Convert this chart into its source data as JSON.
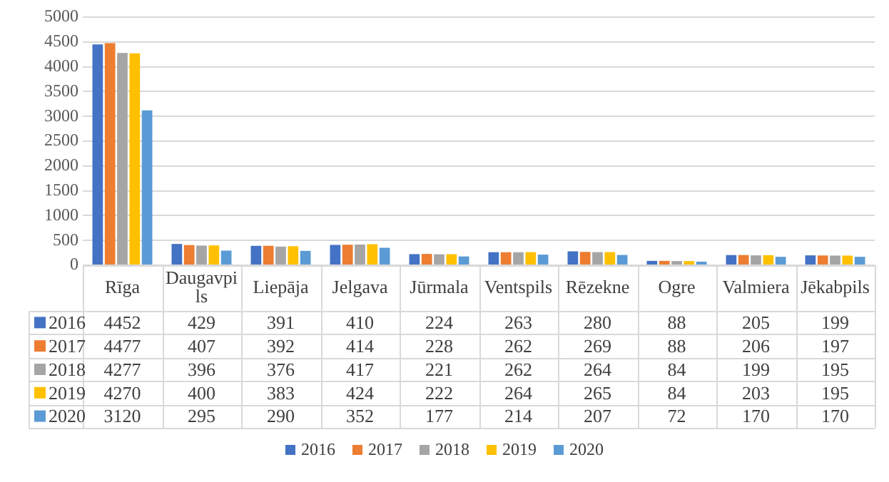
{
  "chart_data": {
    "type": "bar",
    "categories": [
      "Rīga",
      "Daugavpils",
      "Liepāja",
      "Jelgava",
      "Jūrmala",
      "Ventspils",
      "Rēzekne",
      "Ogre",
      "Valmiera",
      "Jēkabpils"
    ],
    "series": [
      {
        "name": "2016",
        "color": "#4472c4",
        "values": [
          4452,
          429,
          391,
          410,
          224,
          263,
          280,
          88,
          205,
          199
        ]
      },
      {
        "name": "2017",
        "color": "#ed7d31",
        "values": [
          4477,
          407,
          392,
          414,
          228,
          262,
          269,
          88,
          206,
          197
        ]
      },
      {
        "name": "2018",
        "color": "#a5a5a5",
        "values": [
          4277,
          396,
          376,
          417,
          221,
          262,
          264,
          84,
          199,
          195
        ]
      },
      {
        "name": "2019",
        "color": "#ffc000",
        "values": [
          4270,
          400,
          383,
          424,
          222,
          264,
          265,
          84,
          203,
          195
        ]
      },
      {
        "name": "2020",
        "color": "#5b9bd5",
        "values": [
          3120,
          295,
          290,
          352,
          177,
          214,
          207,
          72,
          170,
          170
        ]
      }
    ],
    "ylim": [
      0,
      5000
    ],
    "yticks": [
      0,
      500,
      1000,
      1500,
      2000,
      2500,
      3000,
      3500,
      4000,
      4500,
      5000
    ],
    "grid": "y",
    "legend": "bottom",
    "data_labels": true
  }
}
